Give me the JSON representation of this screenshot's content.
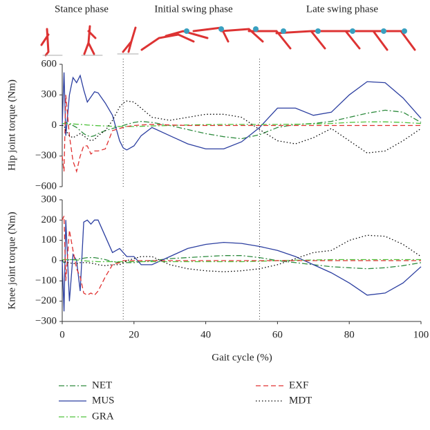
{
  "header": {
    "phases": [
      "Stance phase",
      "Initial swing phase",
      "Late swing phase"
    ]
  },
  "chart_data": [
    {
      "type": "line",
      "ylabel": "Hip joint torque (Nm)",
      "x": [
        0,
        0.5,
        1,
        2,
        3,
        4,
        5,
        6,
        7,
        8,
        9,
        10,
        12,
        14,
        16,
        17,
        18,
        20,
        22,
        25,
        30,
        35,
        40,
        45,
        50,
        55,
        60,
        65,
        70,
        75,
        80,
        85,
        90,
        95,
        100
      ],
      "xlim": [
        0,
        100
      ],
      "ylim": [
        -600,
        600
      ],
      "yticks": [
        {
          "value": -600,
          "label": "−600"
        },
        {
          "value": -300,
          "label": "−300"
        },
        0,
        300,
        600
      ],
      "vlines": [
        17,
        55
      ],
      "series": [
        {
          "name": "NET",
          "color": "#2e8b3e",
          "style": "dashdot",
          "values": [
            20,
            20,
            30,
            10,
            0,
            -20,
            -50,
            -80,
            -100,
            -110,
            -100,
            -80,
            -50,
            -30,
            -10,
            0,
            10,
            30,
            40,
            30,
            0,
            -40,
            -80,
            -110,
            -130,
            -90,
            -20,
            10,
            20,
            40,
            80,
            120,
            150,
            130,
            30
          ]
        },
        {
          "name": "MUS",
          "color": "#2b3ea0",
          "style": "solid",
          "values": [
            0,
            520,
            -100,
            300,
            470,
            420,
            490,
            350,
            230,
            280,
            330,
            320,
            220,
            100,
            -150,
            -220,
            -240,
            -200,
            -100,
            -20,
            -100,
            -180,
            -230,
            -230,
            -160,
            -20,
            170,
            170,
            100,
            130,
            300,
            430,
            420,
            270,
            70
          ]
        },
        {
          "name": "GRA",
          "color": "#4fc23c",
          "style": "dashdot",
          "values": [
            20,
            20,
            20,
            18,
            15,
            12,
            10,
            8,
            5,
            3,
            0,
            -2,
            -5,
            -8,
            -10,
            -10,
            -10,
            -10,
            -8,
            -5,
            0,
            5,
            8,
            10,
            10,
            10,
            10,
            12,
            15,
            20,
            30,
            35,
            35,
            30,
            20
          ]
        },
        {
          "name": "EXF",
          "color": "#e03030",
          "style": "dashed",
          "values": [
            -300,
            -450,
            300,
            -100,
            -350,
            -450,
            -300,
            -200,
            -200,
            -280,
            -250,
            -250,
            -230,
            -50,
            -30,
            -20,
            -10,
            0,
            5,
            10,
            5,
            0,
            0,
            0,
            0,
            0,
            0,
            0,
            0,
            0,
            0,
            0,
            0,
            0,
            0
          ]
        },
        {
          "name": "MDT",
          "color": "#000000",
          "style": "dotted",
          "values": [
            0,
            0,
            -50,
            -100,
            -120,
            -100,
            -80,
            -100,
            -130,
            -150,
            -140,
            -100,
            -50,
            50,
            180,
            220,
            240,
            230,
            170,
            80,
            50,
            80,
            110,
            110,
            80,
            -40,
            -150,
            -180,
            -120,
            -30,
            -150,
            -270,
            -250,
            -150,
            -30
          ]
        }
      ]
    },
    {
      "type": "line",
      "ylabel": "Knee joint torque (Nm)",
      "xlabel": "Gait cycle (%)",
      "x": [
        0,
        0.5,
        1,
        2,
        3,
        4,
        5,
        6,
        7,
        8,
        9,
        10,
        12,
        14,
        16,
        17,
        18,
        20,
        22,
        25,
        30,
        35,
        40,
        45,
        50,
        55,
        60,
        65,
        70,
        75,
        80,
        85,
        90,
        95,
        100
      ],
      "xlim": [
        0,
        100
      ],
      "ylim": [
        -300,
        300
      ],
      "xticks": [
        0,
        20,
        40,
        60,
        80,
        100
      ],
      "yticks": [
        {
          "value": -300,
          "label": "−300"
        },
        {
          "value": -200,
          "label": "−200"
        },
        {
          "value": -100,
          "label": "−100"
        },
        0,
        100,
        200,
        300
      ],
      "vlines": [
        17,
        55
      ],
      "series": [
        {
          "color": "#2e8b3e",
          "style": "dashdot",
          "values": [
            0,
            -10,
            0,
            5,
            5,
            5,
            10,
            12,
            15,
            15,
            15,
            12,
            5,
            -5,
            -10,
            -10,
            -10,
            -10,
            -5,
            0,
            10,
            15,
            20,
            25,
            25,
            15,
            0,
            -10,
            -20,
            -30,
            -35,
            -40,
            -35,
            -25,
            -10
          ]
        },
        {
          "color": "#2b3ea0",
          "style": "solid",
          "values": [
            0,
            -250,
            200,
            -200,
            30,
            0,
            -150,
            190,
            200,
            180,
            200,
            200,
            120,
            40,
            60,
            40,
            20,
            20,
            -20,
            -20,
            20,
            60,
            80,
            90,
            85,
            70,
            50,
            20,
            -20,
            -60,
            -110,
            -170,
            -160,
            -110,
            -30
          ]
        },
        {
          "color": "#4fc23c",
          "style": "dashdot",
          "values": [
            5,
            5,
            5,
            5,
            4,
            3,
            2,
            0,
            -2,
            -3,
            -4,
            -5,
            -5,
            -5,
            -5,
            -5,
            -5,
            -5,
            -5,
            -5,
            -5,
            -5,
            -5,
            -5,
            -5,
            -3,
            0,
            2,
            3,
            5,
            5,
            5,
            5,
            5,
            5
          ]
        },
        {
          "color": "#e03030",
          "style": "dashed",
          "values": [
            200,
            220,
            -100,
            150,
            50,
            -40,
            -80,
            -160,
            -170,
            -160,
            -170,
            -150,
            -80,
            -20,
            -10,
            0,
            0,
            0,
            0,
            0,
            0,
            0,
            0,
            0,
            0,
            0,
            0,
            0,
            0,
            0,
            0,
            0,
            0,
            0,
            0
          ]
        },
        {
          "color": "#000000",
          "style": "dotted",
          "values": [
            0,
            0,
            -10,
            -10,
            -15,
            -15,
            -10,
            -10,
            -10,
            -12,
            -15,
            -20,
            -25,
            -20,
            -20,
            -10,
            0,
            10,
            20,
            20,
            -20,
            -40,
            -50,
            -55,
            -50,
            -40,
            -20,
            10,
            40,
            50,
            100,
            125,
            120,
            80,
            20
          ]
        }
      ]
    }
  ]
}
